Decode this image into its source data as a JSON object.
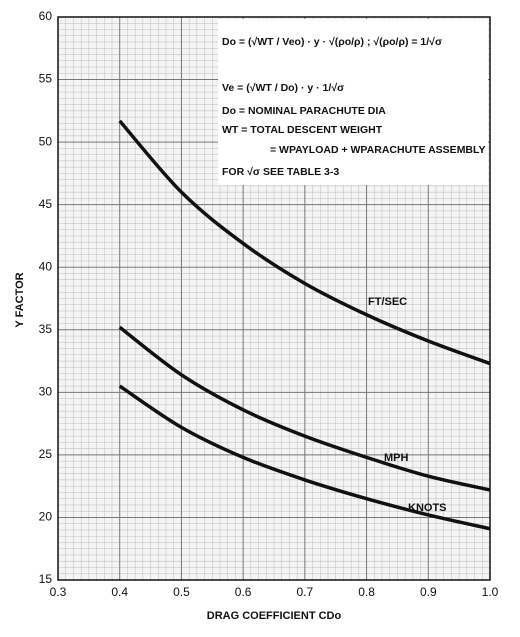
{
  "chart_data": {
    "type": "line",
    "x_label": "DRAG COEFFICIENT CDo",
    "y_label": "Y FACTOR",
    "x": [
      0.4,
      0.5,
      0.6,
      0.7,
      0.8,
      0.9,
      1.0
    ],
    "series": [
      {
        "name": "FT/SEC",
        "color": "#111111",
        "values": [
          51.7,
          46.0,
          41.9,
          38.7,
          36.2,
          34.1,
          32.3
        ]
      },
      {
        "name": "MPH",
        "color": "#111111",
        "values": [
          35.2,
          31.4,
          28.6,
          26.5,
          24.8,
          23.3,
          22.2
        ]
      },
      {
        "name": "KNOTS",
        "color": "#111111",
        "values": [
          30.5,
          27.2,
          24.8,
          23.0,
          21.5,
          20.2,
          19.1
        ]
      }
    ],
    "xlim": [
      0.3,
      1.0
    ],
    "ylim": [
      15,
      60
    ],
    "xticks": [
      0.3,
      0.4,
      0.5,
      0.6,
      0.7,
      0.8,
      0.9,
      {
        "value": 1.0,
        "label": "1.0"
      }
    ],
    "yticks": [
      15,
      20,
      25,
      30,
      35,
      40,
      45,
      50,
      55,
      60
    ],
    "grid": true,
    "annotations": [
      "Do = (√WT / Veo) · y · √(ρo/ρ) ;  √(ρo/ρ) = 1/√σ",
      "Ve = (√WT / Do) · y · 1/√σ",
      "Do = NOMINAL PARACHUTE DIA",
      "WT = TOTAL DESCENT WEIGHT",
      "= WPAYLOAD + WPARACHUTE ASSEMBLY",
      "FOR √σ SEE TABLE 3-3"
    ]
  }
}
